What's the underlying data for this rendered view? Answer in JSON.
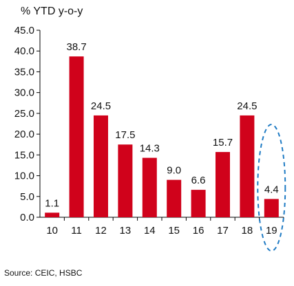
{
  "chart_data": {
    "type": "bar",
    "ylabel": "% YTD y-o-y",
    "categories": [
      "10",
      "11",
      "12",
      "13",
      "14",
      "15",
      "16",
      "17",
      "18",
      "19"
    ],
    "values": [
      1.1,
      38.7,
      24.5,
      17.5,
      14.3,
      9.0,
      6.6,
      15.7,
      24.5,
      4.4
    ],
    "data_labels": [
      "1.1",
      "38.7",
      "24.5",
      "17.5",
      "14.3",
      "9.0",
      "6.6",
      "15.7",
      "24.5",
      "4.4"
    ],
    "ylim": [
      0,
      45
    ],
    "yticks": [
      "0.0",
      "5.0",
      "10.0",
      "15.0",
      "20.0",
      "25.0",
      "30.0",
      "35.0",
      "40.0",
      "45.0"
    ],
    "grid": false,
    "bar_color": "#d0021b",
    "highlight_color": "#1f7bc4",
    "highlight_category": "19"
  },
  "footer": {
    "source": "Source: CEIC, HSBC"
  }
}
